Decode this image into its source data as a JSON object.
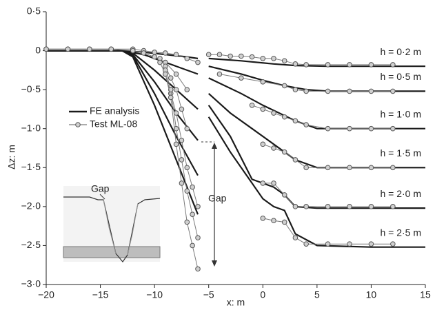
{
  "chart_data": {
    "type": "line",
    "x_label": "x: m",
    "y_label": "Δz: m",
    "xlim": [
      -20,
      15
    ],
    "ylim": [
      -3.0,
      0.5
    ],
    "xticks": [
      {
        "value": -20,
        "label": "−20"
      },
      {
        "value": -15,
        "label": "−15"
      },
      {
        "value": -10,
        "label": "−10"
      },
      {
        "value": -5,
        "label": "−5"
      },
      0,
      5,
      10,
      15
    ],
    "yticks": [
      {
        "value": 0.5,
        "label": "0·5"
      },
      0,
      {
        "value": -0.5,
        "label": "−0·5"
      },
      {
        "value": -1.0,
        "label": "−1·0"
      },
      {
        "value": -1.5,
        "label": "−1·5"
      },
      {
        "value": -2.0,
        "label": "−2·0"
      },
      {
        "value": -2.5,
        "label": "−2·5"
      },
      {
        "value": -3.0,
        "label": "−3·0"
      }
    ],
    "series": [
      {
        "name": "FE analysis",
        "color": "#1a1a1a",
        "curves": [
          {
            "label": "h = 0·2 m",
            "x": [
              -20,
              -13,
              -11,
              -9,
              -7,
              -6,
              -5.5,
              -5,
              -2,
              1,
              3,
              6,
              10,
              15
            ],
            "values": [
              0,
              0,
              -0.02,
              -0.05,
              -0.08,
              -0.1,
              null,
              -0.1,
              -0.13,
              -0.17,
              -0.19,
              -0.2,
              -0.2,
              -0.2
            ]
          },
          {
            "label": "h = 0·5 m",
            "x": [
              -20,
              -13,
              -11,
              -9,
              -7,
              -6,
              -5.5,
              -5,
              -2,
              0,
              2,
              4,
              6,
              10,
              15
            ],
            "values": [
              0,
              0,
              -0.05,
              -0.15,
              -0.25,
              -0.3,
              null,
              -0.2,
              -0.3,
              -0.38,
              -0.45,
              -0.5,
              -0.52,
              -0.52,
              -0.52
            ]
          },
          {
            "label": "h = 1·0 m",
            "x": [
              -20,
              -13,
              -12,
              -10,
              -8,
              -6,
              -5.5,
              -5,
              -2,
              0,
              3,
              5,
              10,
              15
            ],
            "values": [
              0,
              0,
              -0.03,
              -0.25,
              -0.5,
              -0.75,
              null,
              -0.35,
              -0.55,
              -0.7,
              -0.9,
              -1.0,
              -1.0,
              -1.0
            ]
          },
          {
            "label": "h = 1·5 m",
            "x": [
              -20,
              -13,
              -12,
              -10,
              -8,
              -6,
              -5.5,
              -5,
              -3,
              -1,
              1,
              3,
              5,
              10,
              15
            ],
            "values": [
              0,
              0,
              -0.05,
              -0.4,
              -0.8,
              -1.15,
              null,
              -0.55,
              -0.8,
              -1.0,
              -1.2,
              -1.4,
              -1.5,
              -1.5,
              -1.5
            ]
          },
          {
            "label": "h = 2·0 m",
            "x": [
              -20,
              -13,
              -12,
              -10,
              -8,
              -6,
              -5.5,
              -5,
              -3,
              -1,
              1,
              2,
              3,
              5,
              10,
              15
            ],
            "values": [
              0,
              0,
              -0.06,
              -0.55,
              -1.1,
              -1.6,
              null,
              -0.7,
              -1.1,
              -1.65,
              -1.75,
              -1.85,
              -2.0,
              -2.02,
              -2.02,
              -2.02
            ]
          },
          {
            "label": "h = 2·5 m",
            "x": [
              -20,
              -13,
              -12,
              -10,
              -8,
              -6,
              -5.5,
              -5,
              -3,
              -1,
              0,
              1,
              2,
              3,
              5,
              10,
              15
            ],
            "values": [
              0,
              0,
              -0.08,
              -0.7,
              -1.4,
              -2.1,
              null,
              -0.85,
              -1.3,
              -1.7,
              -1.9,
              -2.0,
              -2.05,
              -2.35,
              -2.5,
              -2.52,
              -2.52
            ]
          }
        ]
      },
      {
        "name": "Test ML-08",
        "color": "#7a7a7a",
        "curves": [
          {
            "x": [
              -20,
              -18,
              -16,
              -14,
              -12,
              -11,
              -10,
              -9,
              -8,
              -7,
              -6,
              -5.5,
              -5,
              -4,
              -3,
              -2,
              -1,
              0,
              1,
              2,
              3,
              4,
              6,
              8,
              10,
              12
            ],
            "values": [
              0.02,
              0.02,
              0.02,
              0.02,
              0.02,
              0,
              -0.02,
              -0.03,
              -0.05,
              -0.1,
              -0.15,
              null,
              -0.05,
              -0.05,
              -0.07,
              -0.07,
              -0.08,
              -0.1,
              -0.1,
              -0.13,
              -0.17,
              -0.18,
              -0.18,
              -0.18,
              -0.18,
              -0.18
            ]
          },
          {
            "x": [
              -20,
              -18,
              -16,
              -14,
              -12,
              -11,
              -10,
              -9,
              -8,
              -7,
              -6.5,
              -4,
              -2,
              0,
              2,
              3,
              4,
              6,
              8,
              10,
              12
            ],
            "values": [
              0.02,
              0.02,
              0.02,
              0.02,
              0,
              -0.03,
              -0.08,
              -0.15,
              -0.3,
              -0.5,
              null,
              -0.3,
              -0.35,
              -0.4,
              -0.45,
              -0.5,
              -0.52,
              -0.52,
              -0.52,
              -0.52,
              -0.52
            ]
          },
          {
            "x": [
              -9.5,
              -9,
              -8.5,
              -8,
              -7.5,
              -7,
              -6,
              -1,
              0,
              1,
              2,
              3,
              4,
              6,
              8,
              10,
              12
            ],
            "values": [
              -0.1,
              -0.2,
              -0.35,
              -0.5,
              -0.75,
              -1.0,
              null,
              -0.7,
              -0.75,
              -0.8,
              -0.85,
              -0.9,
              -0.95,
              -1.0,
              -1.0,
              -1.0,
              -1.0
            ]
          },
          {
            "x": [
              -9.5,
              -9,
              -8.5,
              -8,
              -7.5,
              -7,
              -6.5,
              -6,
              -3,
              0,
              1,
              2,
              3,
              4,
              6,
              8,
              10,
              12
            ],
            "values": [
              -0.15,
              -0.3,
              -0.55,
              -0.8,
              -1.15,
              -1.5,
              -1.75,
              -2.0,
              null,
              -1.2,
              -1.25,
              -1.3,
              -1.4,
              -1.5,
              -1.5,
              -1.5,
              -1.5,
              -1.5
            ]
          },
          {
            "x": [
              -9,
              -8.5,
              -8,
              -7.5,
              -7,
              -6.5,
              -6,
              -3,
              0,
              1,
              2,
              3,
              4,
              6,
              8,
              10,
              12
            ],
            "values": [
              -0.25,
              -0.5,
              -1.0,
              -1.4,
              -1.8,
              -2.1,
              -2.4,
              null,
              -1.7,
              -1.7,
              -1.85,
              -2.0,
              -2.0,
              -2.0,
              -2.0,
              -2.0,
              -2.0
            ]
          },
          {
            "x": [
              -9,
              -8.5,
              -8,
              -7.5,
              -7,
              -6.5,
              -6,
              -5,
              0,
              1,
              2,
              3,
              4,
              6,
              8,
              10,
              12
            ],
            "values": [
              -0.3,
              -0.6,
              -1.2,
              -1.7,
              -2.2,
              -2.5,
              -2.8,
              null,
              -2.15,
              -2.18,
              -2.2,
              -2.4,
              -2.48,
              -2.48,
              -2.48,
              -2.48,
              -2.48
            ]
          }
        ]
      }
    ],
    "annotations": [
      "Gap",
      "Gap"
    ]
  }
}
